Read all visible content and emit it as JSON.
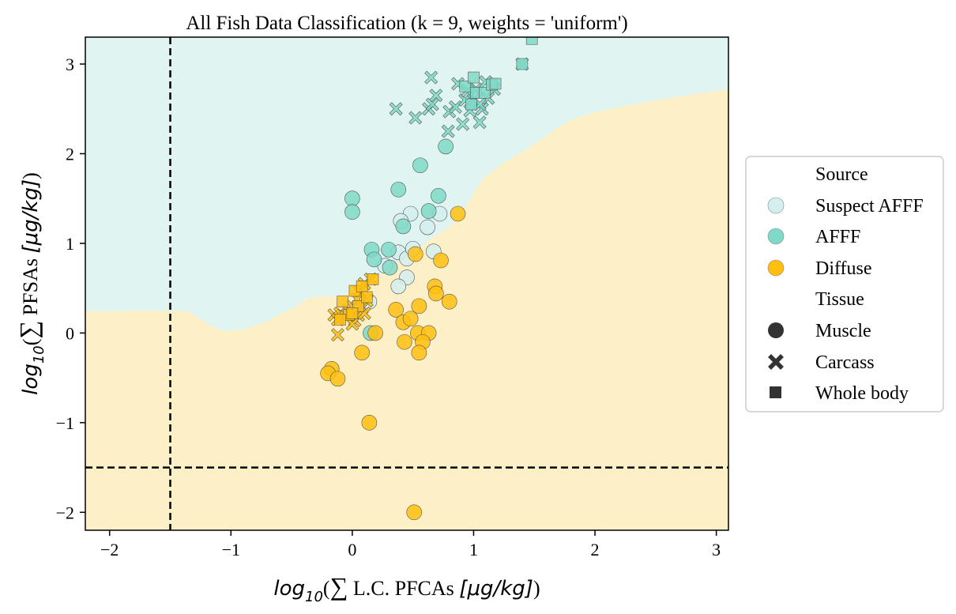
{
  "chart_data": {
    "type": "scatter",
    "title": "All Fish Data Classification (k = 9, weights = 'uniform')",
    "xlabel": {
      "prefix": "log",
      "sub": "10",
      "open": "(",
      "sum": "∑",
      "text": " L.C. PFCAs ",
      "unit": "[μg/kg]",
      "close": ")"
    },
    "ylabel": {
      "prefix": "log",
      "sub": "10",
      "open": "(",
      "sum": "∑",
      "text": " PFSAs ",
      "unit": "[μg/kg]",
      "close": ")"
    },
    "xlim": [
      -2.2,
      3.1
    ],
    "ylim": [
      -2.2,
      3.3
    ],
    "xticks": [
      -2,
      -1,
      0,
      1,
      2,
      3
    ],
    "yticks": [
      -2,
      -1,
      0,
      1,
      2,
      3
    ],
    "tick_minus": "−",
    "reference_lines": {
      "x": -1.5,
      "y": -1.5,
      "style": "dashed"
    },
    "decision_regions": {
      "colors": {
        "AFFF": "#e0f4f2",
        "Diffuse": "#fef0c6"
      },
      "boundary": [
        [
          -2.2,
          0.24
        ],
        [
          -1.55,
          0.25
        ],
        [
          -1.35,
          0.24
        ],
        [
          -1.25,
          0.15
        ],
        [
          -1.15,
          0.07
        ],
        [
          -1.05,
          0.02
        ],
        [
          -0.9,
          0.04
        ],
        [
          -0.72,
          0.12
        ],
        [
          -0.55,
          0.24
        ],
        [
          -0.45,
          0.3
        ],
        [
          -0.38,
          0.38
        ],
        [
          -0.3,
          0.4
        ],
        [
          -0.1,
          0.42
        ],
        [
          0.08,
          0.5
        ],
        [
          0.2,
          0.6
        ],
        [
          0.28,
          0.72
        ],
        [
          0.38,
          0.8
        ],
        [
          0.48,
          0.88
        ],
        [
          0.58,
          0.98
        ],
        [
          0.68,
          1.08
        ],
        [
          0.8,
          1.18
        ],
        [
          0.88,
          1.3
        ],
        [
          0.95,
          1.44
        ],
        [
          1.02,
          1.6
        ],
        [
          1.08,
          1.72
        ],
        [
          1.15,
          1.8
        ],
        [
          1.25,
          1.9
        ],
        [
          1.4,
          2.02
        ],
        [
          1.55,
          2.15
        ],
        [
          1.7,
          2.3
        ],
        [
          1.85,
          2.4
        ],
        [
          2.0,
          2.46
        ],
        [
          2.2,
          2.52
        ],
        [
          2.4,
          2.57
        ],
        [
          2.6,
          2.62
        ],
        [
          2.8,
          2.66
        ],
        [
          3.1,
          2.72
        ]
      ]
    },
    "series": [
      {
        "name": "Suspect AFFF",
        "color": "#d3efee",
        "points": [
          {
            "x": 0.27,
            "y": 0.75,
            "m": "o"
          },
          {
            "x": 0.38,
            "y": 0.9,
            "m": "o"
          },
          {
            "x": 0.45,
            "y": 0.83,
            "m": "o"
          },
          {
            "x": 0.48,
            "y": 1.33,
            "m": "o"
          },
          {
            "x": 0.4,
            "y": 1.25,
            "m": "o"
          },
          {
            "x": 0.45,
            "y": 0.62,
            "m": "o"
          },
          {
            "x": 0.38,
            "y": 0.52,
            "m": "o"
          },
          {
            "x": 0.67,
            "y": 0.91,
            "m": "o"
          },
          {
            "x": 0.62,
            "y": 1.18,
            "m": "o"
          },
          {
            "x": 0.72,
            "y": 1.33,
            "m": "o"
          },
          {
            "x": 0.14,
            "y": 0.35,
            "m": "o"
          },
          {
            "x": 0.5,
            "y": 0.94,
            "m": "o"
          }
        ]
      },
      {
        "name": "AFFF",
        "color": "#7fd9c8",
        "points": [
          {
            "x": 0.0,
            "y": 1.5,
            "m": "o"
          },
          {
            "x": 0.0,
            "y": 1.35,
            "m": "o"
          },
          {
            "x": 0.38,
            "y": 1.6,
            "m": "o"
          },
          {
            "x": 0.56,
            "y": 1.87,
            "m": "o"
          },
          {
            "x": 0.42,
            "y": 1.19,
            "m": "o"
          },
          {
            "x": 0.71,
            "y": 1.53,
            "m": "o"
          },
          {
            "x": 0.63,
            "y": 1.36,
            "m": "o"
          },
          {
            "x": 0.77,
            "y": 2.08,
            "m": "o"
          },
          {
            "x": 0.16,
            "y": 0.93,
            "m": "o"
          },
          {
            "x": 0.3,
            "y": 0.93,
            "m": "o"
          },
          {
            "x": 0.31,
            "y": 0.73,
            "m": "o"
          },
          {
            "x": 0.18,
            "y": 0.82,
            "m": "o"
          },
          {
            "x": 0.15,
            "y": 0.0,
            "m": "o"
          },
          {
            "x": 0.36,
            "y": 2.5,
            "m": "x"
          },
          {
            "x": 0.52,
            "y": 2.4,
            "m": "x"
          },
          {
            "x": 0.63,
            "y": 2.5,
            "m": "x"
          },
          {
            "x": 0.66,
            "y": 2.55,
            "m": "x"
          },
          {
            "x": 0.69,
            "y": 2.65,
            "m": "x"
          },
          {
            "x": 0.65,
            "y": 2.85,
            "m": "x"
          },
          {
            "x": 0.79,
            "y": 2.25,
            "m": "x"
          },
          {
            "x": 0.8,
            "y": 2.47,
            "m": "x"
          },
          {
            "x": 0.85,
            "y": 2.52,
            "m": "x"
          },
          {
            "x": 0.87,
            "y": 2.78,
            "m": "x"
          },
          {
            "x": 0.91,
            "y": 2.33,
            "m": "x"
          },
          {
            "x": 0.93,
            "y": 2.6,
            "m": "x"
          },
          {
            "x": 0.97,
            "y": 2.48,
            "m": "x"
          },
          {
            "x": 1.0,
            "y": 2.6,
            "m": "x"
          },
          {
            "x": 1.02,
            "y": 2.72,
            "m": "x"
          },
          {
            "x": 1.05,
            "y": 2.35,
            "m": "x"
          },
          {
            "x": 1.07,
            "y": 2.5,
            "m": "x"
          },
          {
            "x": 1.1,
            "y": 2.8,
            "m": "x"
          },
          {
            "x": 1.12,
            "y": 2.62,
            "m": "x"
          },
          {
            "x": 1.17,
            "y": 2.72,
            "m": "x"
          },
          {
            "x": 1.4,
            "y": 3.0,
            "m": "x"
          },
          {
            "x": 0.95,
            "y": 2.7,
            "m": "x"
          },
          {
            "x": 1.05,
            "y": 2.55,
            "m": "x"
          },
          {
            "x": 0.93,
            "y": 2.75,
            "m": "s"
          },
          {
            "x": 1.0,
            "y": 2.85,
            "m": "s"
          },
          {
            "x": 1.02,
            "y": 2.68,
            "m": "s"
          },
          {
            "x": 1.09,
            "y": 2.68,
            "m": "s"
          },
          {
            "x": 1.15,
            "y": 2.77,
            "m": "s"
          },
          {
            "x": 1.18,
            "y": 2.78,
            "m": "s"
          },
          {
            "x": 1.4,
            "y": 3.0,
            "m": "s"
          },
          {
            "x": 1.48,
            "y": 3.28,
            "m": "s"
          },
          {
            "x": 0.98,
            "y": 2.55,
            "m": "s"
          }
        ]
      },
      {
        "name": "Diffuse",
        "color": "#ffbf0f",
        "points": [
          {
            "x": 0.87,
            "y": 1.33,
            "m": "o"
          },
          {
            "x": 0.73,
            "y": 0.81,
            "m": "o"
          },
          {
            "x": 0.52,
            "y": 0.88,
            "m": "o"
          },
          {
            "x": 0.68,
            "y": 0.52,
            "m": "o"
          },
          {
            "x": 0.69,
            "y": 0.44,
            "m": "o"
          },
          {
            "x": 0.8,
            "y": 0.35,
            "m": "o"
          },
          {
            "x": 0.55,
            "y": 0.3,
            "m": "o"
          },
          {
            "x": 0.36,
            "y": 0.26,
            "m": "o"
          },
          {
            "x": 0.42,
            "y": 0.12,
            "m": "o"
          },
          {
            "x": 0.48,
            "y": 0.16,
            "m": "o"
          },
          {
            "x": 0.54,
            "y": 0.0,
            "m": "o"
          },
          {
            "x": 0.63,
            "y": 0.0,
            "m": "o"
          },
          {
            "x": 0.58,
            "y": -0.1,
            "m": "o"
          },
          {
            "x": 0.43,
            "y": -0.1,
            "m": "o"
          },
          {
            "x": 0.55,
            "y": -0.22,
            "m": "o"
          },
          {
            "x": 0.19,
            "y": 0.0,
            "m": "o"
          },
          {
            "x": 0.08,
            "y": -0.22,
            "m": "o"
          },
          {
            "x": -0.17,
            "y": -0.4,
            "m": "o"
          },
          {
            "x": -0.2,
            "y": -0.45,
            "m": "o"
          },
          {
            "x": -0.12,
            "y": -0.51,
            "m": "o"
          },
          {
            "x": 0.14,
            "y": -1.0,
            "m": "o"
          },
          {
            "x": 0.51,
            "y": -2.0,
            "m": "o"
          },
          {
            "x": -0.15,
            "y": 0.2,
            "m": "x"
          },
          {
            "x": -0.12,
            "y": 0.15,
            "m": "x"
          },
          {
            "x": -0.1,
            "y": 0.22,
            "m": "x"
          },
          {
            "x": -0.05,
            "y": 0.18,
            "m": "x"
          },
          {
            "x": -0.03,
            "y": 0.25,
            "m": "x"
          },
          {
            "x": 0.0,
            "y": 0.3,
            "m": "x"
          },
          {
            "x": 0.02,
            "y": 0.14,
            "m": "x"
          },
          {
            "x": 0.05,
            "y": 0.2,
            "m": "x"
          },
          {
            "x": 0.08,
            "y": 0.28,
            "m": "x"
          },
          {
            "x": 0.1,
            "y": 0.22,
            "m": "x"
          },
          {
            "x": 0.12,
            "y": 0.36,
            "m": "x"
          },
          {
            "x": 0.06,
            "y": 0.46,
            "m": "x"
          },
          {
            "x": 0.1,
            "y": 0.55,
            "m": "x"
          },
          {
            "x": 0.15,
            "y": 0.6,
            "m": "x"
          },
          {
            "x": -0.12,
            "y": -0.02,
            "m": "x"
          },
          {
            "x": 0.0,
            "y": 0.1,
            "m": "x"
          },
          {
            "x": 0.04,
            "y": 0.38,
            "m": "x"
          },
          {
            "x": -0.08,
            "y": 0.35,
            "m": "s"
          },
          {
            "x": 0.02,
            "y": 0.47,
            "m": "s"
          },
          {
            "x": 0.08,
            "y": 0.52,
            "m": "s"
          },
          {
            "x": 0.17,
            "y": 0.6,
            "m": "s"
          },
          {
            "x": -0.03,
            "y": 0.2,
            "m": "s"
          },
          {
            "x": 0.05,
            "y": 0.3,
            "m": "s"
          },
          {
            "x": -0.1,
            "y": 0.15,
            "m": "s"
          },
          {
            "x": 0.12,
            "y": 0.4,
            "m": "s"
          },
          {
            "x": 0.0,
            "y": 0.22,
            "m": "s"
          }
        ]
      }
    ],
    "legend": {
      "placement": "outside-right",
      "source_title": "Source",
      "source_items": [
        {
          "label": "Suspect AFFF",
          "color": "#d3efee"
        },
        {
          "label": "AFFF",
          "color": "#7fd9c8"
        },
        {
          "label": "Diffuse",
          "color": "#ffbf0f"
        }
      ],
      "tissue_title": "Tissue",
      "tissue_items": [
        {
          "label": "Muscle",
          "marker": "o"
        },
        {
          "label": "Carcass",
          "marker": "x"
        },
        {
          "label": "Whole body",
          "marker": "s"
        }
      ]
    }
  }
}
